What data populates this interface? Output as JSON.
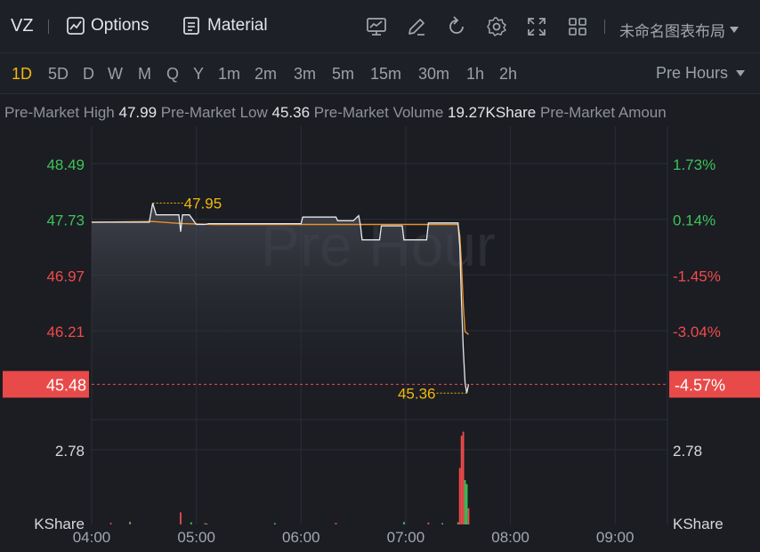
{
  "toolbar": {
    "symbol": "VZ",
    "options_label": "Options",
    "material_label": "Material",
    "layout_name": "未命名图表布局",
    "icons": [
      "options-chart-icon",
      "material-doc-icon",
      "chart-template-icon",
      "pencil-icon",
      "refresh-icon",
      "gear-icon",
      "fullscreen-icon",
      "grid-layout-icon"
    ]
  },
  "periods": {
    "items": [
      "1D",
      "5D",
      "D",
      "W",
      "M",
      "Q",
      "Y",
      "1m",
      "2m",
      "3m",
      "5m",
      "15m",
      "30m",
      "1h",
      "2h"
    ],
    "active": "1D",
    "session_label": "Pre Hours"
  },
  "info": {
    "high_label": "Pre-Market High",
    "high_value": "47.99",
    "low_label": "Pre-Market Low",
    "low_value": "45.36",
    "volume_label": "Pre-Market Volume",
    "volume_value": "19.27KShare",
    "amount_label": "Pre-Market Amoun"
  },
  "colors": {
    "up": "#3ec25a",
    "down": "#f04b4b",
    "accent": "#f0b90b",
    "price_line": "#e6e8ec",
    "avg_line": "#e8912d",
    "current_price_bg": "#e84a4a"
  },
  "chart_data": {
    "type": "line",
    "watermark": "Pre Hour",
    "x_ticks": [
      "04:00",
      "05:00",
      "06:00",
      "07:00",
      "08:00",
      "09:00"
    ],
    "x_range": [
      "04:00",
      "09:30"
    ],
    "price_axis_ticks": [
      "48.49",
      "47.73",
      "46.97",
      "46.21"
    ],
    "percent_axis_ticks": [
      "1.73%",
      "0.14%",
      "-1.45%",
      "-3.04%"
    ],
    "price_range": [
      45.0,
      48.95
    ],
    "prev_close": 47.66,
    "current_price": "45.48",
    "current_percent": "-4.57%",
    "high_marker": "47.95",
    "low_marker": "45.36",
    "price_series": [
      {
        "t": "04:00",
        "v": 47.69
      },
      {
        "t": "04:33",
        "v": 47.69
      },
      {
        "t": "04:35",
        "v": 47.95
      },
      {
        "t": "04:37",
        "v": 47.79
      },
      {
        "t": "04:50",
        "v": 47.79
      },
      {
        "t": "04:51",
        "v": 47.56
      },
      {
        "t": "04:52",
        "v": 47.79
      },
      {
        "t": "04:56",
        "v": 47.79
      },
      {
        "t": "05:00",
        "v": 47.66
      },
      {
        "t": "05:05",
        "v": 47.66
      },
      {
        "t": "05:07",
        "v": 47.67
      },
      {
        "t": "06:00",
        "v": 47.67
      },
      {
        "t": "06:01",
        "v": 47.76
      },
      {
        "t": "06:20",
        "v": 47.76
      },
      {
        "t": "06:21",
        "v": 47.71
      },
      {
        "t": "06:30",
        "v": 47.71
      },
      {
        "t": "06:33",
        "v": 47.78
      },
      {
        "t": "06:34",
        "v": 47.66
      },
      {
        "t": "06:35",
        "v": 47.45
      },
      {
        "t": "06:45",
        "v": 47.45
      },
      {
        "t": "06:46",
        "v": 47.64
      },
      {
        "t": "06:58",
        "v": 47.64
      },
      {
        "t": "06:59",
        "v": 47.45
      },
      {
        "t": "07:12",
        "v": 47.45
      },
      {
        "t": "07:13",
        "v": 47.68
      },
      {
        "t": "07:30",
        "v": 47.68
      },
      {
        "t": "07:31",
        "v": 47.35
      },
      {
        "t": "07:32",
        "v": 46.6
      },
      {
        "t": "07:33",
        "v": 45.95
      },
      {
        "t": "07:34",
        "v": 45.5
      },
      {
        "t": "07:35",
        "v": 45.36
      },
      {
        "t": "07:36",
        "v": 45.48
      }
    ],
    "avg_series": [
      {
        "t": "04:00",
        "v": 47.69
      },
      {
        "t": "04:35",
        "v": 47.7
      },
      {
        "t": "04:52",
        "v": 47.67
      },
      {
        "t": "05:10",
        "v": 47.66
      },
      {
        "t": "06:00",
        "v": 47.66
      },
      {
        "t": "07:00",
        "v": 47.66
      },
      {
        "t": "07:30",
        "v": 47.66
      },
      {
        "t": "07:31",
        "v": 47.5
      },
      {
        "t": "07:32",
        "v": 47.1
      },
      {
        "t": "07:33",
        "v": 46.55
      },
      {
        "t": "07:34",
        "v": 46.2
      },
      {
        "t": "07:36",
        "v": 46.16
      }
    ],
    "volume_axis_tick": "2.78",
    "volume_unit": "KShare",
    "volume_range": [
      0,
      3.9
    ],
    "volume_series": [
      {
        "t": "04:11",
        "v": 0.06,
        "dir": "down"
      },
      {
        "t": "04:22",
        "v": 0.1,
        "dir": "up"
      },
      {
        "t": "04:22",
        "v": 0.04,
        "dir": "down"
      },
      {
        "t": "04:51",
        "v": 0.45,
        "dir": "down"
      },
      {
        "t": "04:57",
        "v": 0.08,
        "dir": "up"
      },
      {
        "t": "05:05",
        "v": 0.05,
        "dir": "down"
      },
      {
        "t": "05:06",
        "v": 0.03,
        "dir": "up"
      },
      {
        "t": "05:45",
        "v": 0.05,
        "dir": "up"
      },
      {
        "t": "06:20",
        "v": 0.06,
        "dir": "down"
      },
      {
        "t": "06:59",
        "v": 0.09,
        "dir": "up"
      },
      {
        "t": "07:13",
        "v": 0.07,
        "dir": "down"
      },
      {
        "t": "07:21",
        "v": 0.05,
        "dir": "up"
      },
      {
        "t": "07:30",
        "v": 0.08,
        "dir": "up"
      },
      {
        "t": "07:31",
        "v": 2.1,
        "dir": "down"
      },
      {
        "t": "07:32",
        "v": 3.3,
        "dir": "down"
      },
      {
        "t": "07:33",
        "v": 3.45,
        "dir": "down"
      },
      {
        "t": "07:34",
        "v": 1.65,
        "dir": "up"
      },
      {
        "t": "07:35",
        "v": 1.5,
        "dir": "up"
      },
      {
        "t": "07:36",
        "v": 0.6,
        "dir": "down"
      }
    ]
  }
}
